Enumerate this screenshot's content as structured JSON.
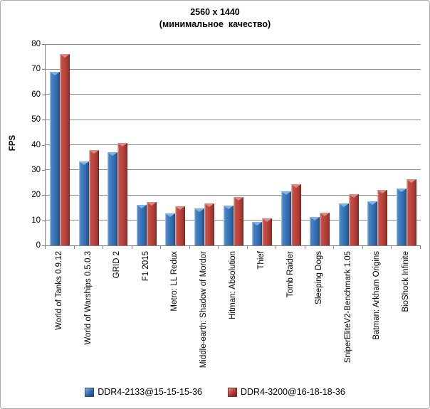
{
  "chart_data": {
    "type": "bar",
    "title": "2560 x 1440",
    "subtitle": "(минимальное  качество)",
    "ylabel": "FPS",
    "ylim": [
      0,
      80
    ],
    "yticks": [
      0,
      10,
      20,
      30,
      40,
      50,
      60,
      70,
      80
    ],
    "grid": true,
    "legend_position": "bottom",
    "categories": [
      "World of Tanks 0.9.12",
      "World of Warships 0.5.0.3",
      "GRID 2",
      "F1 2015",
      "Metro: LL Redux",
      "Middle-earth: Shadow of Mordor",
      "Hitman: Absolution",
      "Thief",
      "Tomb Raider",
      "Sleeping Dogs",
      "SniperEliteV2-Benchmark 1.05",
      "Batman: Arkham Origins",
      "BioShock Infinite"
    ],
    "series": [
      {
        "name": "DDR4-2133@15-15-15-36",
        "color": "#3A76BB",
        "values": [
          69,
          33.4,
          36.9,
          16,
          12.7,
          14.8,
          15.8,
          9.3,
          21.6,
          11.2,
          16.6,
          17.6,
          22.5
        ]
      },
      {
        "name": "DDR4-3200@16-18-18-36",
        "color": "#BC463F",
        "values": [
          76,
          38,
          40.8,
          17.3,
          15.5,
          16.6,
          19.3,
          10.8,
          24.3,
          12.9,
          20.4,
          22.1,
          26.2
        ]
      }
    ]
  },
  "colors": {
    "bar_blue_main": "#3A76BB",
    "bar_blue_cap": "#7FB3E8",
    "bar_red_main": "#BC463F",
    "bar_red_cap": "#DE8A80",
    "gridline": "#8E8E8E",
    "axis": "#7F7F7F",
    "frame_border": "#ABABAB",
    "text": "#000000",
    "background": "#FFFFFF"
  }
}
